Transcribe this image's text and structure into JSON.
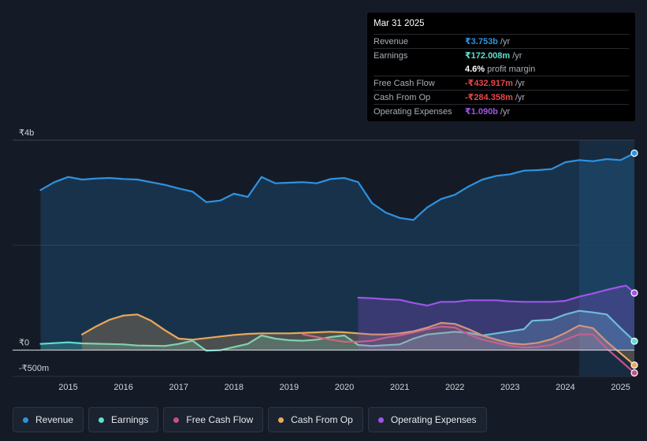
{
  "chart_data": {
    "type": "area",
    "currency": "₹",
    "y_unit": "m",
    "ylim": [
      -500,
      4000
    ],
    "y_ticks": [
      {
        "value": 4000,
        "label": "₹4b"
      },
      {
        "value": 0,
        "label": "₹0"
      },
      {
        "value": -500,
        "label": "-₹500m"
      }
    ],
    "xlim": [
      2014.45,
      2025.25
    ],
    "x_ticks": [
      {
        "value": 2015,
        "label": "2015"
      },
      {
        "value": 2016,
        "label": "2016"
      },
      {
        "value": 2017,
        "label": "2017"
      },
      {
        "value": 2018,
        "label": "2018"
      },
      {
        "value": 2019,
        "label": "2019"
      },
      {
        "value": 2020,
        "label": "2020"
      },
      {
        "value": 2021,
        "label": "2021"
      },
      {
        "value": 2022,
        "label": "2022"
      },
      {
        "value": 2023,
        "label": "2023"
      },
      {
        "value": 2024,
        "label": "2024"
      },
      {
        "value": 2025,
        "label": "2025"
      }
    ],
    "highlight_range": [
      2024.25,
      2025.25
    ],
    "series": [
      {
        "name": "Revenue",
        "color": "#2d93e0",
        "fill": true,
        "x": [
          2014.5,
          2014.75,
          2015.0,
          2015.25,
          2015.5,
          2015.75,
          2016.0,
          2016.25,
          2016.5,
          2016.75,
          2017.0,
          2017.25,
          2017.5,
          2017.75,
          2018.0,
          2018.25,
          2018.5,
          2018.75,
          2019.0,
          2019.25,
          2019.5,
          2019.75,
          2020.0,
          2020.25,
          2020.5,
          2020.75,
          2021.0,
          2021.25,
          2021.5,
          2021.75,
          2022.0,
          2022.25,
          2022.5,
          2022.75,
          2023.0,
          2023.25,
          2023.5,
          2023.75,
          2024.0,
          2024.25,
          2024.5,
          2024.75,
          2025.0,
          2025.25
        ],
        "y": [
          3050,
          3200,
          3300,
          3250,
          3270,
          3280,
          3260,
          3250,
          3200,
          3150,
          3080,
          3020,
          2820,
          2850,
          2980,
          2920,
          3300,
          3180,
          3190,
          3200,
          3180,
          3260,
          3280,
          3200,
          2800,
          2620,
          2520,
          2480,
          2720,
          2880,
          2960,
          3120,
          3250,
          3320,
          3350,
          3420,
          3430,
          3450,
          3580,
          3620,
          3600,
          3640,
          3620,
          3753
        ]
      },
      {
        "name": "Earnings",
        "color": "#5ee0cf",
        "fill": true,
        "x": [
          2014.5,
          2015.0,
          2015.25,
          2016.0,
          2016.25,
          2016.75,
          2017.0,
          2017.25,
          2017.5,
          2017.75,
          2018.0,
          2018.25,
          2018.5,
          2018.75,
          2019.0,
          2019.25,
          2019.5,
          2019.75,
          2020.0,
          2020.25,
          2020.5,
          2021.0,
          2021.25,
          2021.5,
          2022.0,
          2022.25,
          2022.5,
          2022.75,
          2023.0,
          2023.25,
          2023.4,
          2023.75,
          2024.0,
          2024.25,
          2024.5,
          2024.75,
          2025.0,
          2025.25
        ],
        "y": [
          120,
          150,
          130,
          110,
          90,
          80,
          120,
          180,
          -10,
          0,
          60,
          120,
          280,
          220,
          190,
          180,
          200,
          250,
          280,
          100,
          80,
          110,
          220,
          300,
          350,
          330,
          280,
          320,
          360,
          400,
          560,
          580,
          680,
          750,
          720,
          680,
          420,
          172
        ]
      },
      {
        "name": "Free Cash Flow",
        "color": "#c84f84",
        "fill": false,
        "x": [
          2019.25,
          2019.5,
          2019.75,
          2020.0,
          2020.25,
          2020.5,
          2020.75,
          2021.0,
          2021.25,
          2021.5,
          2021.75,
          2022.0,
          2022.25,
          2022.5,
          2022.75,
          2023.0,
          2023.25,
          2023.5,
          2023.75,
          2024.0,
          2024.25,
          2024.5,
          2024.75,
          2025.0,
          2025.25
        ],
        "y": [
          300,
          250,
          200,
          160,
          160,
          180,
          240,
          280,
          340,
          400,
          450,
          430,
          300,
          200,
          140,
          80,
          50,
          60,
          100,
          200,
          300,
          300,
          30,
          -200,
          -433
        ]
      },
      {
        "name": "Cash From Op",
        "color": "#e8a95a",
        "fill": true,
        "x": [
          2015.25,
          2015.5,
          2015.75,
          2016.0,
          2016.25,
          2016.5,
          2016.75,
          2017.0,
          2017.25,
          2017.5,
          2017.75,
          2018.0,
          2018.25,
          2018.5,
          2018.75,
          2019.0,
          2019.25,
          2019.5,
          2019.75,
          2020.0,
          2020.25,
          2020.5,
          2020.75,
          2021.0,
          2021.25,
          2021.5,
          2021.75,
          2022.0,
          2022.25,
          2022.5,
          2022.75,
          2023.0,
          2023.25,
          2023.5,
          2023.75,
          2024.0,
          2024.25,
          2024.5,
          2024.75,
          2025.0,
          2025.25
        ],
        "y": [
          300,
          450,
          580,
          660,
          680,
          560,
          380,
          220,
          200,
          230,
          260,
          290,
          310,
          320,
          320,
          320,
          330,
          340,
          350,
          340,
          320,
          300,
          300,
          320,
          360,
          430,
          520,
          500,
          400,
          280,
          200,
          130,
          110,
          140,
          210,
          330,
          470,
          420,
          160,
          -60,
          -284
        ]
      },
      {
        "name": "Operating Expenses",
        "color": "#9d55e8",
        "fill": true,
        "x": [
          2020.25,
          2020.5,
          2020.75,
          2021.0,
          2021.25,
          2021.5,
          2021.75,
          2022.0,
          2022.25,
          2022.5,
          2022.75,
          2023.0,
          2023.25,
          2023.5,
          2023.75,
          2024.0,
          2024.25,
          2024.5,
          2024.75,
          2025.0,
          2025.1,
          2025.25
        ],
        "y": [
          1000,
          990,
          970,
          960,
          900,
          850,
          920,
          920,
          950,
          950,
          950,
          930,
          920,
          920,
          920,
          940,
          1020,
          1080,
          1150,
          1210,
          1230,
          1090
        ]
      }
    ]
  },
  "tooltip": {
    "date": "Mar 31 2025",
    "rows": [
      {
        "label": "Revenue",
        "value": "₹3.753b",
        "unit": "/yr",
        "color": "#2d93e0"
      },
      {
        "label": "Earnings",
        "value": "₹172.008m",
        "unit": "/yr",
        "color": "#5ee0cf"
      },
      {
        "label": "",
        "value": "4.6%",
        "unit": "profit margin",
        "color": "#ffffff"
      },
      {
        "label": "Free Cash Flow",
        "value": "-₹432.917m",
        "unit": "/yr",
        "color": "#e8464a"
      },
      {
        "label": "Cash From Op",
        "value": "-₹284.358m",
        "unit": "/yr",
        "color": "#e8464a"
      },
      {
        "label": "Operating Expenses",
        "value": "₹1.090b",
        "unit": "/yr",
        "color": "#9d55e8"
      }
    ]
  },
  "legend": [
    {
      "label": "Revenue",
      "color": "#2d93e0"
    },
    {
      "label": "Earnings",
      "color": "#5ee0cf"
    },
    {
      "label": "Free Cash Flow",
      "color": "#c84f84"
    },
    {
      "label": "Cash From Op",
      "color": "#e8a95a"
    },
    {
      "label": "Operating Expenses",
      "color": "#9d55e8"
    }
  ]
}
